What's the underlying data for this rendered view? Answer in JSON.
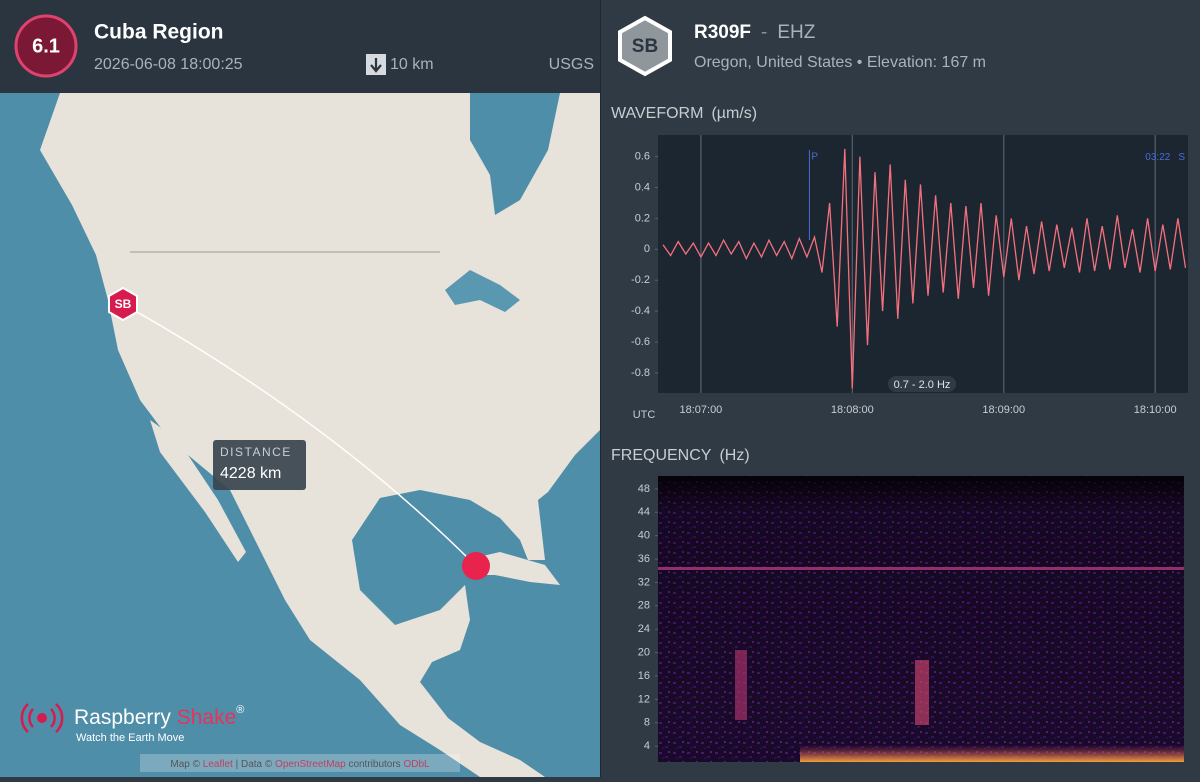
{
  "event": {
    "magnitude": "6.1",
    "region": "Cuba Region",
    "time": "2026-06-08 18:00:25",
    "depth": "10 km",
    "source": "USGS"
  },
  "station": {
    "badge": "SB",
    "code": "R309F",
    "separator": "-",
    "channel": "EHZ",
    "location": "Oregon, United States",
    "bullet": "•",
    "elevation": "Elevation: 167 m"
  },
  "map": {
    "marker": "SB",
    "distance_label": "DISTANCE",
    "distance": "4228 km",
    "brand_first": "Raspberry",
    "brand_second": "Shake",
    "brand_mark": "®",
    "tagline": "Watch the Earth Move",
    "attribution": [
      "Map ©",
      "Leaflet",
      "| Data ©",
      "OpenStreetMap",
      "contributors",
      "ODbL"
    ]
  },
  "chart_data": [
    {
      "type": "line",
      "title": "WAVEFORM",
      "unit": "(µm/s)",
      "x_label": "UTC",
      "color": "#f4707e",
      "grid": true,
      "filter_label": "0.7 - 2.0 Hz",
      "p_label": "P",
      "p_time": "18:07:43",
      "s_time_label": "03:22",
      "s_label": "S",
      "x": [
        "18:06:45",
        "18:06:48",
        "18:06:51",
        "18:06:54",
        "18:06:57",
        "18:07:00",
        "18:07:03",
        "18:07:06",
        "18:07:09",
        "18:07:12",
        "18:07:15",
        "18:07:18",
        "18:07:21",
        "18:07:24",
        "18:07:27",
        "18:07:30",
        "18:07:33",
        "18:07:36",
        "18:07:39",
        "18:07:42",
        "18:07:45",
        "18:07:48",
        "18:07:51",
        "18:07:54",
        "18:07:57",
        "18:08:00",
        "18:08:03",
        "18:08:06",
        "18:08:09",
        "18:08:12",
        "18:08:15",
        "18:08:18",
        "18:08:21",
        "18:08:24",
        "18:08:27",
        "18:08:30",
        "18:08:33",
        "18:08:36",
        "18:08:39",
        "18:08:42",
        "18:08:45",
        "18:08:48",
        "18:08:51",
        "18:08:54",
        "18:08:57",
        "18:09:00",
        "18:09:03",
        "18:09:06",
        "18:09:09",
        "18:09:12",
        "18:09:15",
        "18:09:18",
        "18:09:21",
        "18:09:24",
        "18:09:27",
        "18:09:30",
        "18:09:33",
        "18:09:36",
        "18:09:39",
        "18:09:42",
        "18:09:45",
        "18:09:48",
        "18:09:51",
        "18:09:54",
        "18:09:57",
        "18:10:00",
        "18:10:03",
        "18:10:06",
        "18:10:09",
        "18:10:12"
      ],
      "values": [
        0.03,
        -0.04,
        0.05,
        -0.03,
        0.04,
        -0.05,
        0.04,
        -0.04,
        0.06,
        -0.03,
        0.05,
        -0.06,
        0.04,
        -0.05,
        0.06,
        -0.04,
        0.05,
        -0.06,
        0.07,
        -0.05,
        0.08,
        -0.15,
        0.3,
        -0.5,
        0.65,
        -0.9,
        0.6,
        -0.62,
        0.5,
        -0.4,
        0.55,
        -0.45,
        0.45,
        -0.35,
        0.42,
        -0.3,
        0.35,
        -0.28,
        0.3,
        -0.32,
        0.28,
        -0.25,
        0.3,
        -0.3,
        0.22,
        -0.18,
        0.2,
        -0.2,
        0.15,
        -0.16,
        0.18,
        -0.14,
        0.16,
        -0.12,
        0.14,
        -0.15,
        0.2,
        -0.14,
        0.15,
        -0.13,
        0.22,
        -0.12,
        0.13,
        -0.15,
        0.2,
        -0.14,
        0.16,
        -0.13,
        0.2,
        -0.12
      ],
      "xlim": [
        "18:06:43",
        "18:10:13"
      ],
      "xticks": [
        "18:07:00",
        "18:08:00",
        "18:09:00",
        "18:10:00"
      ],
      "ylim": [
        -0.93,
        0.74
      ],
      "yticks": [
        0.6,
        0.4,
        0.2,
        0,
        -0.2,
        -0.4,
        -0.6,
        -0.8
      ]
    },
    {
      "type": "spectrogram",
      "title": "FREQUENCY",
      "unit": "(Hz)",
      "ylim": [
        1.3,
        50.2
      ],
      "yticks": [
        48,
        44,
        40,
        36,
        32,
        28,
        24,
        20,
        16,
        12,
        8,
        4
      ]
    }
  ]
}
